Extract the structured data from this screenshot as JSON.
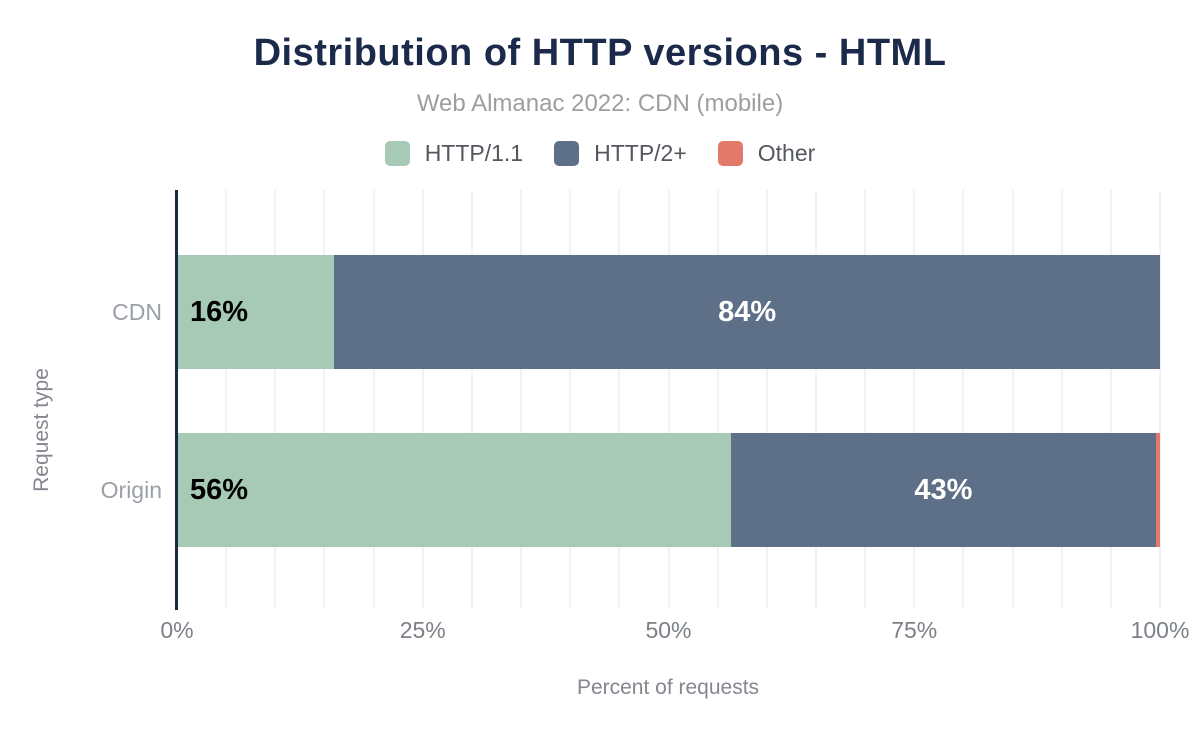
{
  "header": {
    "title": "Distribution of HTTP versions - HTML",
    "subtitle": "Web Almanac 2022: CDN (mobile)"
  },
  "chart_data": {
    "type": "bar",
    "orientation": "horizontal-stacked",
    "title": "Distribution of HTTP versions - HTML",
    "subtitle": "Web Almanac 2022: CDN (mobile)",
    "categories": [
      "CDN",
      "Origin"
    ],
    "series": [
      {
        "name": "HTTP/1.1",
        "color": "#a6cab6",
        "values": [
          16,
          56
        ],
        "label_color": "#000000",
        "label_align": "start"
      },
      {
        "name": "HTTP/2+",
        "color": "#5e7087",
        "values": [
          84,
          43
        ],
        "label_color": "#ffffff",
        "label_align": "center"
      },
      {
        "name": "Other",
        "color": "#e2796a",
        "values": [
          0,
          0.4
        ],
        "label_color": "#ffffff",
        "label_align": "center"
      }
    ],
    "labels": [
      [
        "16%",
        "84%",
        ""
      ],
      [
        "56%",
        "43%",
        ""
      ]
    ],
    "xlabel": "Percent of requests",
    "ylabel": "Request type",
    "x_ticks": [
      "0%",
      "25%",
      "50%",
      "75%",
      "100%"
    ],
    "x_tick_values": [
      0,
      25,
      50,
      75,
      100
    ],
    "xlim": [
      0,
      100
    ],
    "grid": {
      "show": true,
      "interval_pct": 5,
      "color": "#f2f2f5"
    },
    "legend_position": "top"
  },
  "colors": {
    "background": "#ffffff",
    "title": "#1b2a4a",
    "subtitle": "#9e9e9e",
    "legend_text": "#53575e",
    "axis_line": "#182942",
    "gridline": "#f2f2f5",
    "tick_label": "#7c8087",
    "axis_title": "#83878e",
    "category_label": "#9aa0a6"
  }
}
